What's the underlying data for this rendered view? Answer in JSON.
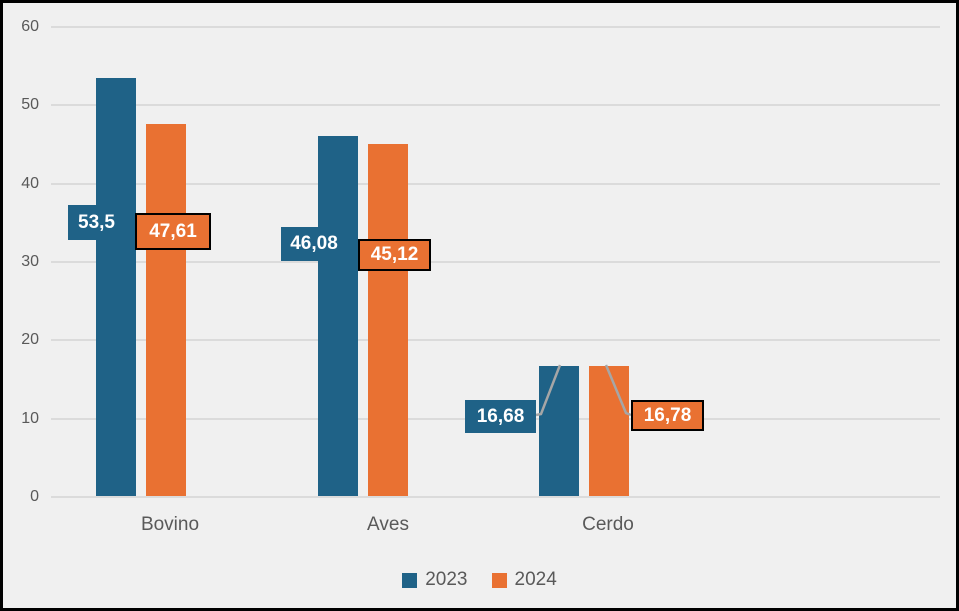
{
  "chart_data": {
    "type": "bar",
    "title": "",
    "categories": [
      "Bovino",
      "Aves",
      "Cerdo"
    ],
    "series": [
      {
        "name": "2023",
        "color": "#1F6287",
        "values": [
          53.5,
          46.08,
          16.68
        ],
        "value_labels": [
          "53,5",
          "46,08",
          "16,68"
        ]
      },
      {
        "name": "2024",
        "color": "#E97132",
        "values": [
          47.61,
          45.12,
          16.78
        ],
        "value_labels": [
          "47,61",
          "45,12",
          "16,78"
        ]
      }
    ],
    "xlabel": "",
    "ylabel": "",
    "ylim": [
      0,
      60
    ],
    "y_tick_step": 10,
    "y_tick_labels": [
      "0",
      "10",
      "20",
      "30",
      "40",
      "50",
      "60"
    ],
    "grid": true,
    "legend_position": "bottom",
    "colors": {
      "background": "#F0F0F0",
      "frame_border": "#000000",
      "gridline": "#DBDBDB",
      "axis_text": "#595959",
      "leader_line": "#A6A6A6",
      "data_label_text": "#FFFFFF",
      "data_label_border": "#000000"
    }
  }
}
